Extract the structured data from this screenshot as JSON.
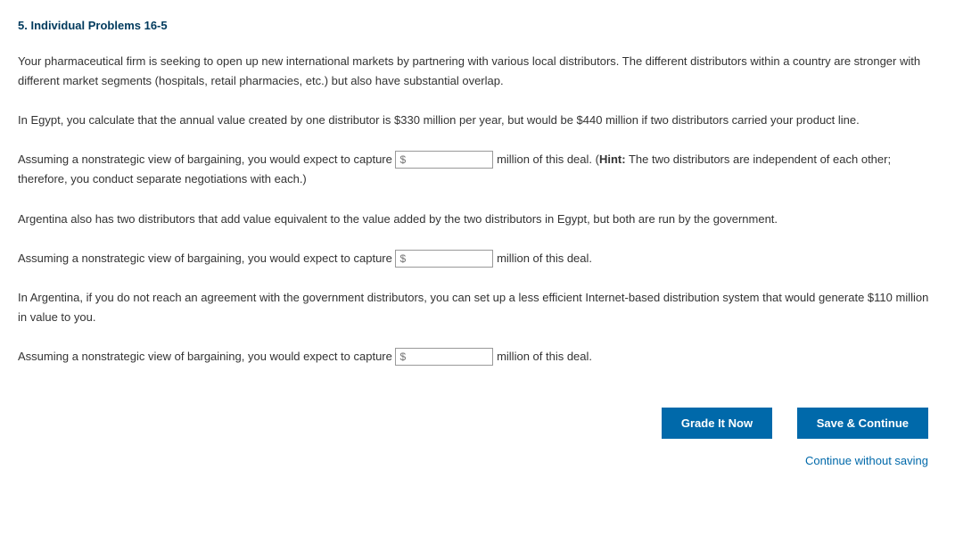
{
  "heading": "5. Individual Problems 16-5",
  "p1": "Your pharmaceutical firm is seeking to open up new international markets by partnering with various local distributors. The different distributors within a country are stronger with different market segments (hospitals, retail pharmacies, etc.) but also have substantial overlap.",
  "p2": "In Egypt, you calculate that the annual value created by one distributor is $330 million per year, but would be $440 million if two distributors carried your product line.",
  "q1_pre": "Assuming a nonstrategic view of bargaining, you would expect to capture ",
  "q1_post_a": " million of this deal. (",
  "q1_hint_label": "Hint:",
  "q1_post_b": " The two distributors are independent of each other; therefore, you conduct separate negotiations with each.)",
  "p3": "Argentina also has two distributors that add value equivalent to the value added by the two distributors in Egypt, but both are run by the government.",
  "q2_pre": "Assuming a nonstrategic view of bargaining, you would expect to capture ",
  "q2_post": " million of this deal.",
  "p4": "In Argentina, if you do not reach an agreement with the government distributors, you can set up a less efficient Internet-based distribution system that would generate $110 million in value to you.",
  "q3_pre": "Assuming a nonstrategic view of bargaining, you would expect to capture ",
  "q3_post": " million of this deal.",
  "input_placeholder": "$",
  "btn_grade": "Grade It Now",
  "btn_save": "Save & Continue",
  "link_continue": "Continue without saving",
  "colors": {
    "heading": "#003a5d",
    "button_bg": "#0069aa",
    "link": "#0069aa",
    "text": "#333333"
  }
}
